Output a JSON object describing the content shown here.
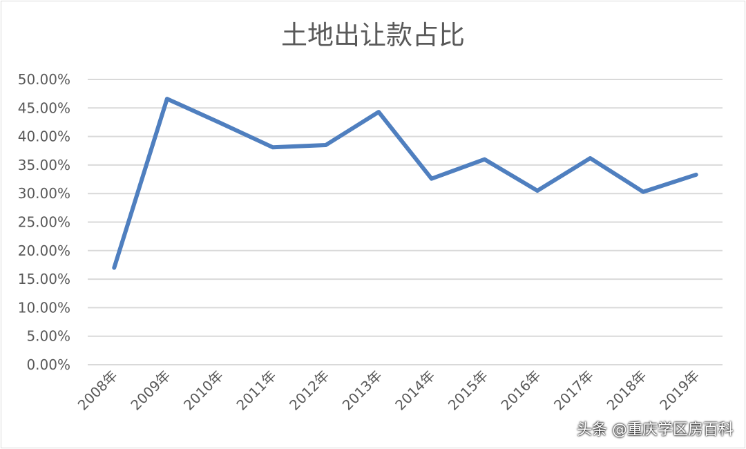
{
  "chart_data": {
    "type": "line",
    "title": "土地出让款占比",
    "categories": [
      "2008年",
      "2009年",
      "2010年",
      "2011年",
      "2012年",
      "2013年",
      "2014年",
      "2015年",
      "2016年",
      "2017年",
      "2018年",
      "2019年"
    ],
    "series": [
      {
        "values": [
          17.0,
          46.6,
          42.4,
          38.1,
          38.5,
          44.3,
          32.6,
          36.0,
          30.5,
          36.2,
          30.3,
          33.3
        ]
      }
    ],
    "ylim": [
      0,
      50
    ],
    "yticks": [
      "0.00%",
      "5.00%",
      "10.00%",
      "15.00%",
      "20.00%",
      "25.00%",
      "30.00%",
      "35.00%",
      "40.00%",
      "45.00%",
      "50.00%"
    ],
    "grid": true,
    "line_color": "#4f7fbf",
    "grid_color": "#d9d9d9",
    "text_color": "#595959"
  },
  "watermark": "头条 @重庆学区房百科"
}
